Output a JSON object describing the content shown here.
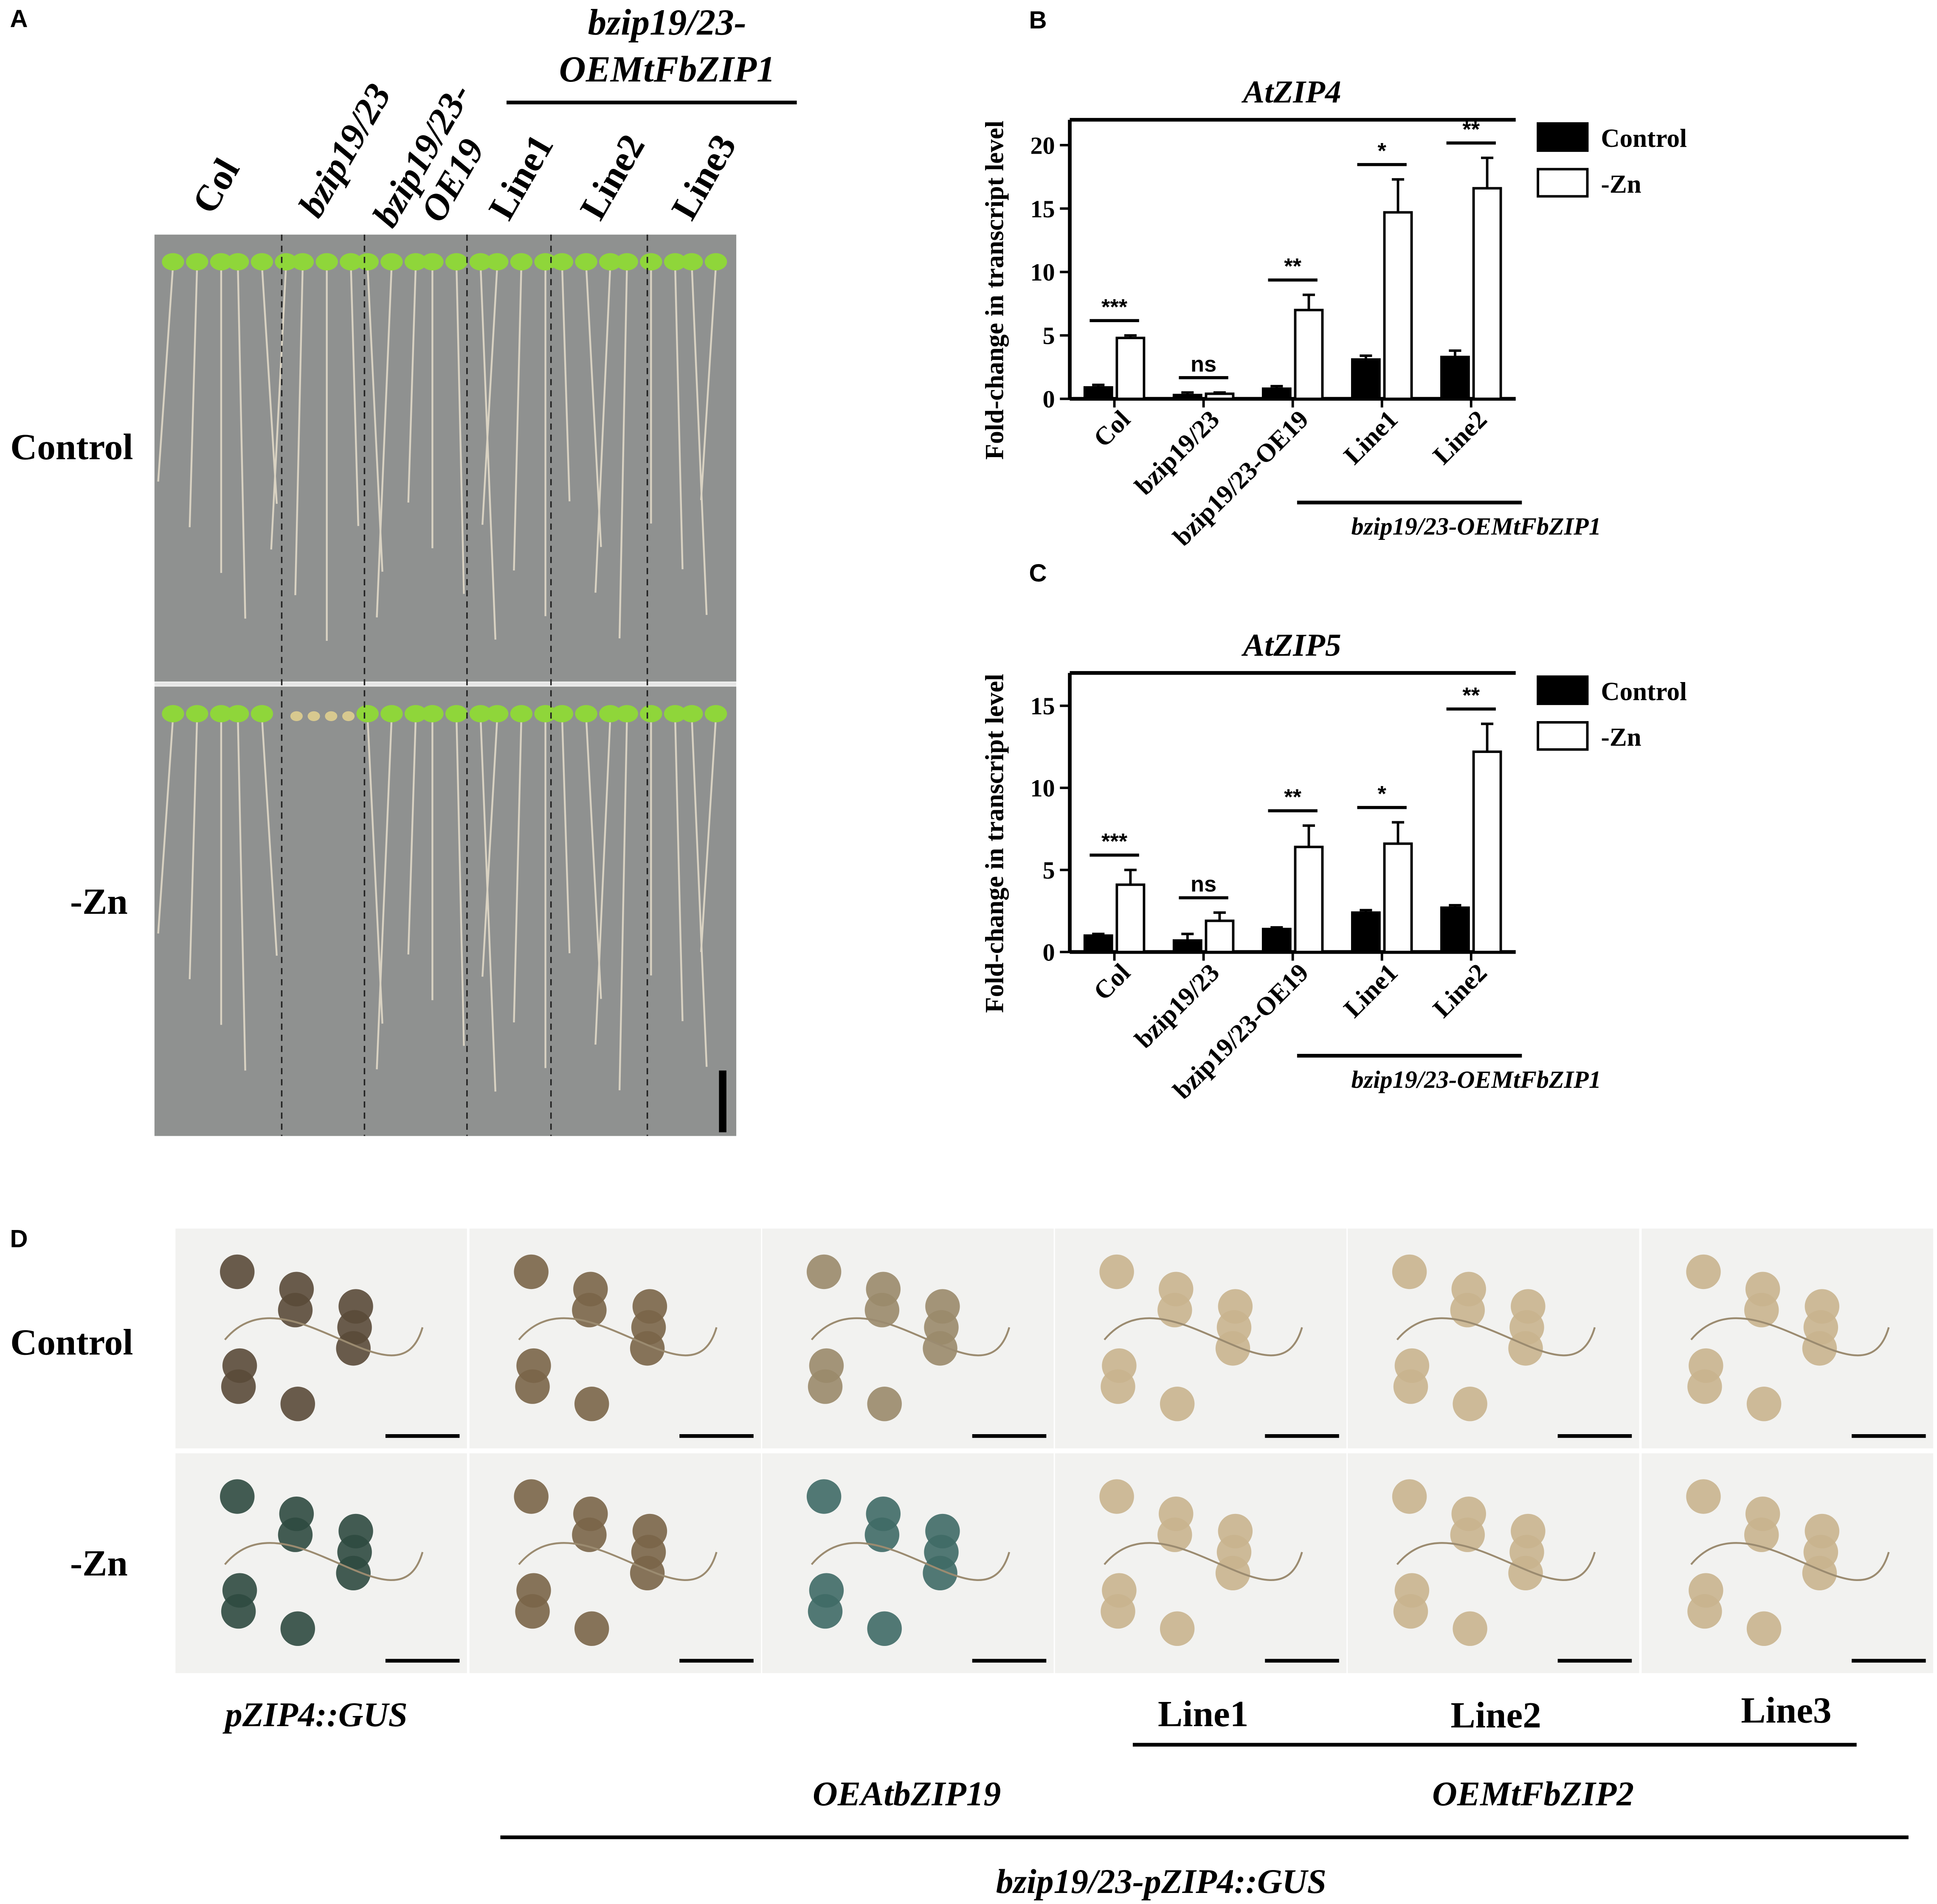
{
  "panel_a": {
    "label": "A",
    "header": [
      "bzip19/23-",
      "OEMtFbZIP1"
    ],
    "columns": [
      "Col",
      "bzip19/23",
      [
        "bzip19/23-",
        "OE19"
      ],
      "Line1",
      "Line2",
      "Line3"
    ],
    "rows": [
      "Control",
      "-Zn"
    ]
  },
  "chart_data": [
    {
      "type": "bar",
      "panel": "B",
      "title": "AtZIP4",
      "y_label": "Fold-change in transcript level",
      "categories": [
        "Col",
        "bzip19/23",
        "bzip19/23-OE19",
        "Line1",
        "Line2"
      ],
      "group_label": "bzip19/23-OEMtFbZIP1",
      "series": [
        {
          "name": "Control",
          "color": "#000000",
          "values": [
            0.9,
            0.3,
            0.8,
            3.1,
            3.3
          ],
          "errors": [
            0.2,
            0.2,
            0.2,
            0.3,
            0.5
          ]
        },
        {
          "name": "-Zn",
          "color": "#ffffff",
          "values": [
            4.8,
            0.4,
            7.0,
            14.7,
            16.6
          ],
          "errors": [
            0.2,
            0.1,
            1.2,
            2.6,
            2.4
          ]
        }
      ],
      "significance": [
        "***",
        "ns",
        "**",
        "*",
        "**"
      ],
      "ylim": [
        0,
        22
      ],
      "yticks": [
        0,
        5,
        10,
        15,
        20
      ]
    },
    {
      "type": "bar",
      "panel": "C",
      "title": "AtZIP5",
      "y_label": "Fold-change in transcript level",
      "categories": [
        "Col",
        "bzip19/23",
        "bzip19/23-OE19",
        "Line1",
        "Line2"
      ],
      "group_label": "bzip19/23-OEMtFbZIP1",
      "series": [
        {
          "name": "Control",
          "color": "#000000",
          "values": [
            1.0,
            0.7,
            1.4,
            2.4,
            2.7
          ],
          "errors": [
            0.1,
            0.4,
            0.1,
            0.15,
            0.15
          ]
        },
        {
          "name": "-Zn",
          "color": "#ffffff",
          "values": [
            4.1,
            1.9,
            6.4,
            6.6,
            12.2
          ],
          "errors": [
            0.9,
            0.5,
            1.3,
            1.3,
            1.7
          ]
        }
      ],
      "significance": [
        "***",
        "ns",
        "**",
        "*",
        "**"
      ],
      "ylim": [
        0,
        17
      ],
      "yticks": [
        0,
        5,
        10,
        15
      ]
    }
  ],
  "panel_d": {
    "label": "D",
    "rows": [
      "Control",
      "-Zn"
    ],
    "reporter": "pZIP4::GUS",
    "lines": [
      "Line1",
      "Line2",
      "Line3"
    ],
    "groups": [
      "OEAtbZIP19",
      "OEMtFbZIP2"
    ],
    "background": "bzip19/23-pZIP4::GUS"
  }
}
